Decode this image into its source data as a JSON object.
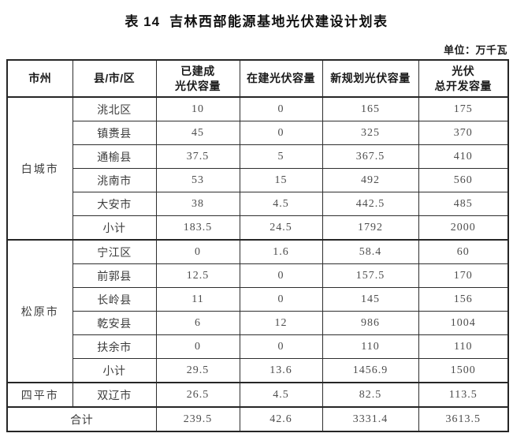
{
  "page": {
    "table_number": "表 14",
    "title": "吉林西部能源基地光伏建设计划表",
    "unit_label": "单位：万千瓦"
  },
  "table": {
    "headers": {
      "city": "市州",
      "county": "县/市/区",
      "built": "已建成\n光伏容量",
      "under_construction": "在建光伏容量",
      "new_planned": "新规划光伏容量",
      "total": "光伏\n总开发容量"
    },
    "groups": [
      {
        "city": "白城市",
        "rows": [
          {
            "county": "洮北区",
            "built": "10",
            "under": "0",
            "planned": "165",
            "total": "175"
          },
          {
            "county": "镇赉县",
            "built": "45",
            "under": "0",
            "planned": "325",
            "total": "370"
          },
          {
            "county": "通榆县",
            "built": "37.5",
            "under": "5",
            "planned": "367.5",
            "total": "410"
          },
          {
            "county": "洮南市",
            "built": "53",
            "under": "15",
            "planned": "492",
            "total": "560"
          },
          {
            "county": "大安市",
            "built": "38",
            "under": "4.5",
            "planned": "442.5",
            "total": "485"
          },
          {
            "county": "小计",
            "built": "183.5",
            "under": "24.5",
            "planned": "1792",
            "total": "2000"
          }
        ]
      },
      {
        "city": "松原市",
        "rows": [
          {
            "county": "宁江区",
            "built": "0",
            "under": "1.6",
            "planned": "58.4",
            "total": "60"
          },
          {
            "county": "前郭县",
            "built": "12.5",
            "under": "0",
            "planned": "157.5",
            "total": "170"
          },
          {
            "county": "长岭县",
            "built": "11",
            "under": "0",
            "planned": "145",
            "total": "156"
          },
          {
            "county": "乾安县",
            "built": "6",
            "under": "12",
            "planned": "986",
            "total": "1004"
          },
          {
            "county": "扶余市",
            "built": "0",
            "under": "0",
            "planned": "110",
            "total": "110"
          },
          {
            "county": "小计",
            "built": "29.5",
            "under": "13.6",
            "planned": "1456.9",
            "total": "1500"
          }
        ]
      },
      {
        "city": "四平市",
        "rows": [
          {
            "county": "双辽市",
            "built": "26.5",
            "under": "4.5",
            "planned": "82.5",
            "total": "113.5"
          }
        ]
      }
    ],
    "footer": {
      "label": "合计",
      "built": "239.5",
      "under": "42.6",
      "planned": "3331.4",
      "total": "3613.5"
    }
  }
}
